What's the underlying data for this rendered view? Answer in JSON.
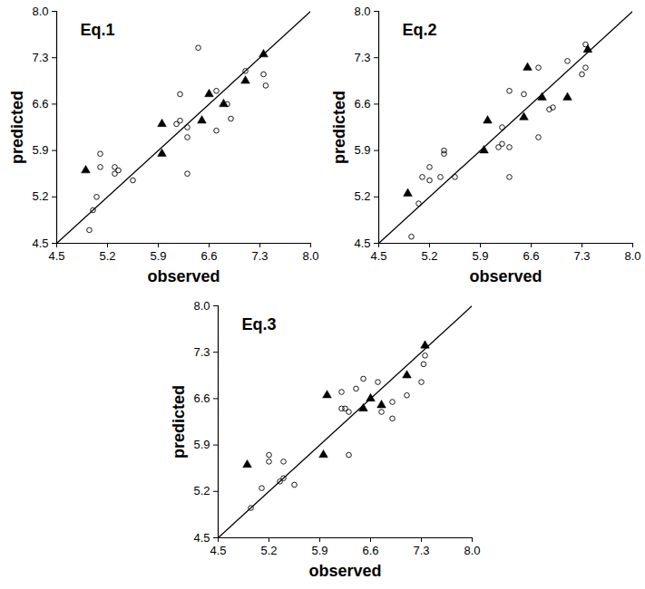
{
  "chart_data": [
    {
      "type": "scatter",
      "title": "Eq.1",
      "x_label": "observed",
      "y_label": "predicted",
      "xlim": [
        4.5,
        8.0
      ],
      "ylim": [
        4.5,
        8.0
      ],
      "xticks": [
        4.5,
        5.2,
        5.9,
        6.6,
        7.3,
        {
          "value": 8.0,
          "label": "8.0"
        }
      ],
      "yticks": [
        4.5,
        5.2,
        5.9,
        6.6,
        7.3,
        {
          "value": 8.0,
          "label": "8.0"
        }
      ],
      "series": [
        {
          "type": "scatter",
          "marker": "circle-open",
          "color": "#000000",
          "x": [
            6.45,
            7.1,
            7.35,
            7.38,
            6.2,
            6.7,
            6.85,
            6.9,
            6.7,
            6.2,
            6.15,
            6.3,
            6.3,
            6.3,
            5.1,
            5.1,
            5.3,
            5.35,
            5.3,
            5.55,
            5.05,
            5.0,
            4.95
          ],
          "values": [
            7.45,
            7.1,
            7.05,
            6.88,
            6.75,
            6.8,
            6.6,
            6.38,
            6.2,
            6.35,
            6.3,
            6.25,
            6.1,
            5.55,
            5.85,
            5.65,
            5.65,
            5.6,
            5.55,
            5.45,
            5.2,
            5.0,
            4.7
          ]
        },
        {
          "type": "scatter",
          "marker": "triangle",
          "color": "#000000",
          "x": [
            4.9,
            5.95,
            5.95,
            6.5,
            6.6,
            6.8,
            7.1,
            7.35
          ],
          "values": [
            5.6,
            6.3,
            5.85,
            6.35,
            6.75,
            6.6,
            6.95,
            7.35
          ]
        },
        {
          "type": "line",
          "color": "#000000",
          "x": [
            4.5,
            8.0
          ],
          "values": [
            4.5,
            8.0
          ]
        }
      ]
    },
    {
      "type": "scatter",
      "title": "Eq.2",
      "x_label": "observed",
      "y_label": "predicted",
      "xlim": [
        4.5,
        8.0
      ],
      "ylim": [
        4.5,
        8.0
      ],
      "xticks": [
        4.5,
        5.2,
        5.9,
        6.6,
        7.3,
        {
          "value": 8.0,
          "label": "8.0"
        }
      ],
      "yticks": [
        4.5,
        5.2,
        5.9,
        6.6,
        7.3,
        {
          "value": 8.0,
          "label": "8.0"
        }
      ],
      "series": [
        {
          "type": "scatter",
          "marker": "circle-open",
          "color": "#000000",
          "x": [
            7.35,
            7.1,
            7.35,
            7.3,
            6.7,
            6.5,
            6.3,
            6.3,
            6.2,
            6.15,
            6.2,
            6.9,
            6.85,
            6.7,
            6.3,
            5.4,
            5.4,
            5.2,
            5.1,
            5.2,
            5.35,
            5.55,
            5.05,
            4.95
          ],
          "values": [
            7.5,
            7.25,
            7.15,
            7.05,
            7.15,
            6.75,
            6.8,
            5.95,
            6.0,
            5.95,
            6.25,
            6.55,
            6.52,
            6.1,
            5.5,
            5.9,
            5.85,
            5.65,
            5.5,
            5.45,
            5.5,
            5.5,
            5.1,
            4.6
          ]
        },
        {
          "type": "scatter",
          "marker": "triangle",
          "color": "#000000",
          "x": [
            4.9,
            5.95,
            6.0,
            6.5,
            6.55,
            6.75,
            7.1,
            7.38
          ],
          "values": [
            5.25,
            5.9,
            6.35,
            6.4,
            7.15,
            6.7,
            6.7,
            7.42
          ]
        },
        {
          "type": "line",
          "color": "#000000",
          "x": [
            4.5,
            8.0
          ],
          "values": [
            4.5,
            8.0
          ]
        }
      ]
    },
    {
      "type": "scatter",
      "title": "Eq.3",
      "x_label": "observed",
      "y_label": "predicted",
      "xlim": [
        4.5,
        8.0
      ],
      "ylim": [
        4.5,
        8.0
      ],
      "xticks": [
        4.5,
        5.2,
        5.9,
        6.6,
        7.3,
        {
          "value": 8.0,
          "label": "8.0"
        }
      ],
      "yticks": [
        4.5,
        5.2,
        5.9,
        6.6,
        7.3,
        {
          "value": 8.0,
          "label": "8.0"
        }
      ],
      "series": [
        {
          "type": "scatter",
          "marker": "circle-open",
          "color": "#000000",
          "x": [
            7.35,
            7.33,
            7.3,
            7.1,
            6.5,
            6.7,
            6.4,
            6.2,
            6.25,
            6.2,
            6.3,
            6.9,
            6.9,
            6.75,
            6.3,
            5.2,
            5.2,
            5.4,
            5.4,
            5.35,
            5.55,
            5.1,
            4.95
          ],
          "values": [
            7.25,
            7.12,
            6.85,
            6.65,
            6.9,
            6.85,
            6.75,
            6.7,
            6.45,
            6.45,
            6.4,
            6.55,
            6.3,
            6.4,
            5.75,
            5.75,
            5.65,
            5.65,
            5.4,
            5.35,
            5.3,
            5.25,
            4.95
          ]
        },
        {
          "type": "scatter",
          "marker": "triangle",
          "color": "#000000",
          "x": [
            4.9,
            5.95,
            6.0,
            6.5,
            6.6,
            6.75,
            7.1,
            7.35
          ],
          "values": [
            5.6,
            5.75,
            6.65,
            6.45,
            6.6,
            6.5,
            6.95,
            7.4
          ]
        },
        {
          "type": "line",
          "color": "#000000",
          "x": [
            4.5,
            8.0
          ],
          "values": [
            4.5,
            8.0
          ]
        }
      ]
    }
  ]
}
